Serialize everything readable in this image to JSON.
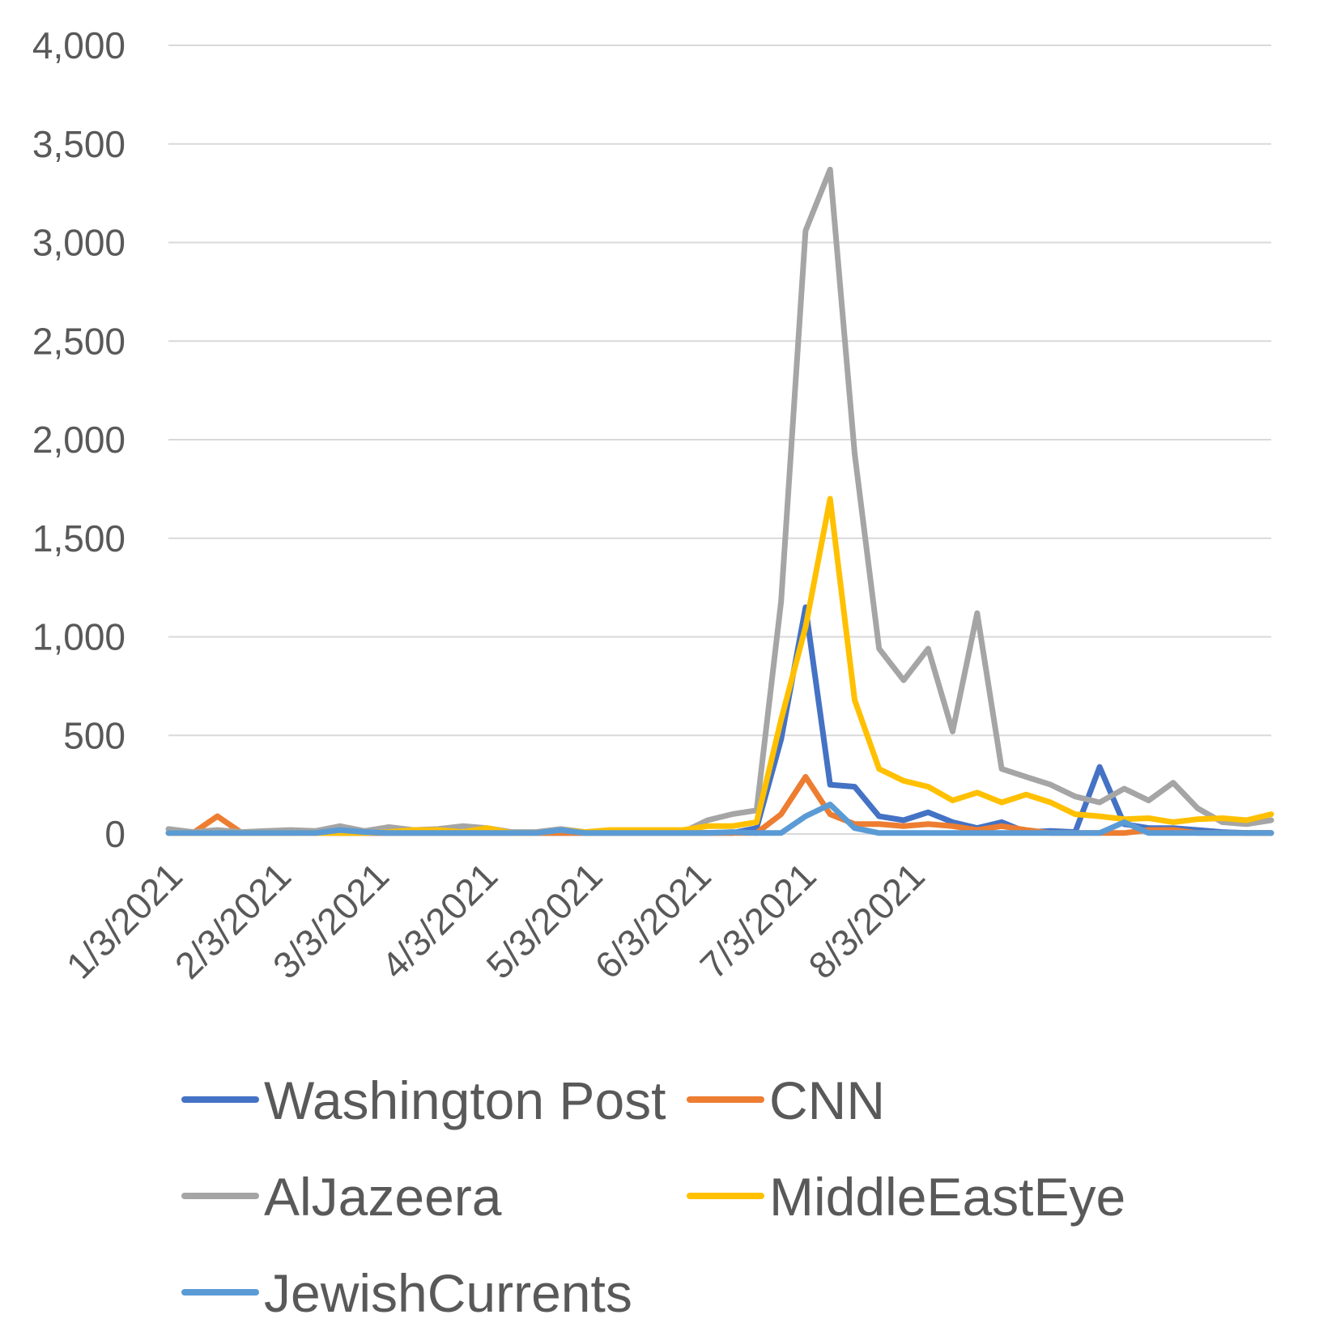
{
  "chart_data": {
    "type": "line",
    "title": "",
    "xlabel": "",
    "ylabel": "",
    "ylim": [
      0,
      4000
    ],
    "yticks": [
      0,
      500,
      1000,
      1500,
      2000,
      2500,
      3000,
      3500,
      4000
    ],
    "ytick_labels": [
      "0",
      "500",
      "1,000",
      "1,500",
      "2,000",
      "2,500",
      "3,000",
      "3,500",
      "4,000"
    ],
    "x_start": "2021-01-03",
    "x_interval": "weekly",
    "xticks": [
      {
        "index": 0,
        "label": "1/3/2021"
      },
      {
        "index": 4.43,
        "label": "2/3/2021"
      },
      {
        "index": 8.43,
        "label": "3/3/2021"
      },
      {
        "index": 12.86,
        "label": "4/3/2021"
      },
      {
        "index": 17.14,
        "label": "5/3/2021"
      },
      {
        "index": 21.57,
        "label": "6/3/2021"
      },
      {
        "index": 25.86,
        "label": "7/3/2021"
      },
      {
        "index": 30.29,
        "label": "8/3/2021"
      }
    ],
    "grid": true,
    "legend_position": "bottom",
    "series": [
      {
        "name": "Washington Post",
        "color": "#4472C4",
        "values": [
          5,
          5,
          5,
          5,
          5,
          5,
          10,
          5,
          5,
          5,
          5,
          5,
          5,
          5,
          5,
          5,
          5,
          5,
          5,
          5,
          5,
          5,
          5,
          5,
          30,
          480,
          1150,
          250,
          240,
          90,
          70,
          110,
          60,
          30,
          60,
          10,
          15,
          10,
          340,
          50,
          30,
          30,
          20,
          10,
          5,
          5
        ]
      },
      {
        "name": "CNN",
        "color": "#ED7D31",
        "values": [
          5,
          5,
          90,
          5,
          5,
          5,
          5,
          5,
          5,
          5,
          5,
          5,
          5,
          5,
          5,
          5,
          5,
          5,
          5,
          5,
          5,
          5,
          5,
          5,
          5,
          100,
          290,
          100,
          50,
          50,
          40,
          50,
          40,
          20,
          40,
          20,
          5,
          5,
          5,
          5,
          20,
          20,
          5,
          5,
          5,
          5
        ]
      },
      {
        "name": "AlJazeera",
        "color": "#A5A5A5",
        "values": [
          25,
          10,
          20,
          10,
          15,
          20,
          15,
          40,
          15,
          35,
          20,
          25,
          40,
          30,
          10,
          10,
          25,
          10,
          10,
          10,
          10,
          10,
          70,
          100,
          120,
          1180,
          3060,
          3370,
          1930,
          940,
          780,
          940,
          520,
          1120,
          330,
          290,
          250,
          190,
          160,
          230,
          170,
          260,
          130,
          60,
          50,
          70
        ]
      },
      {
        "name": "MiddleEastEye",
        "color": "#FFC000",
        "values": [
          5,
          5,
          5,
          5,
          5,
          5,
          5,
          5,
          5,
          10,
          20,
          20,
          10,
          30,
          5,
          5,
          20,
          10,
          20,
          20,
          20,
          20,
          40,
          40,
          60,
          580,
          1050,
          1700,
          680,
          330,
          270,
          240,
          170,
          210,
          160,
          200,
          160,
          100,
          90,
          75,
          80,
          60,
          75,
          80,
          70,
          100
        ]
      },
      {
        "name": "JewishCurrents",
        "color": "#5B9BD5",
        "values": [
          5,
          5,
          5,
          5,
          5,
          5,
          5,
          20,
          10,
          5,
          5,
          5,
          5,
          5,
          5,
          5,
          20,
          5,
          5,
          5,
          5,
          5,
          5,
          10,
          5,
          5,
          90,
          150,
          30,
          5,
          5,
          5,
          5,
          5,
          5,
          5,
          5,
          5,
          5,
          60,
          5,
          5,
          5,
          5,
          5,
          5
        ]
      }
    ]
  }
}
